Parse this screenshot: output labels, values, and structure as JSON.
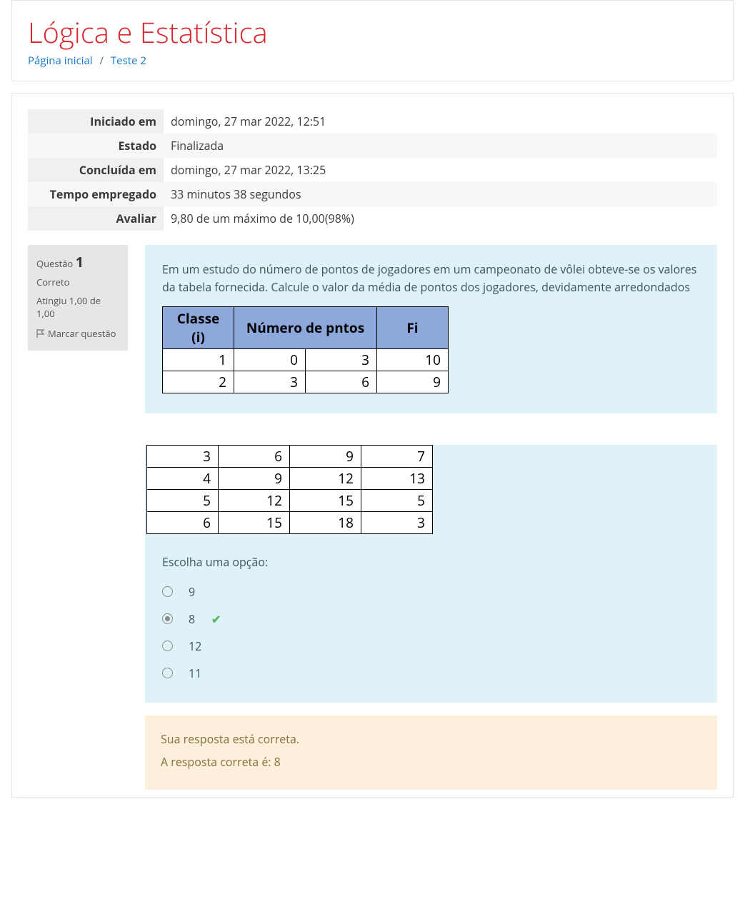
{
  "header": {
    "title": "Lógica e Estatística",
    "title_color": "#d9262c",
    "breadcrumb": {
      "home": "Página inicial",
      "current": "Teste 2"
    }
  },
  "summary": {
    "rows": [
      {
        "label": "Iniciado em",
        "value": "domingo, 27 mar 2022, 12:51"
      },
      {
        "label": "Estado",
        "value": "Finalizada"
      },
      {
        "label": "Concluída em",
        "value": "domingo, 27 mar 2022, 13:25"
      },
      {
        "label": "Tempo empregado",
        "value": "33 minutos 38 segundos"
      },
      {
        "label": "Avaliar",
        "value": "9,80 de um máximo de 10,00(98%)"
      }
    ]
  },
  "question": {
    "label": "Questão",
    "number": "1",
    "state": "Correto",
    "grade": "Atingiu 1,00 de 1,00",
    "flag_label": "Marcar questão",
    "text": "Em um estudo do número de pontos de jogadores em um campeonato de vôlei obteve-se os valores da tabela fornecida. Calcule o valor da média de pontos dos jogadores, devidamente arredondados",
    "table": {
      "header_bg": "#8ea8dc",
      "headers": {
        "classe": "Classe (i)",
        "num": "Número de pntos",
        "fi": "Fi"
      },
      "rows_top": [
        {
          "i": "1",
          "a": "0",
          "b": "3",
          "fi": "10"
        },
        {
          "i": "2",
          "a": "3",
          "b": "6",
          "fi": "9"
        }
      ],
      "rows_bottom": [
        {
          "i": "3",
          "a": "6",
          "b": "9",
          "fi": "7"
        },
        {
          "i": "4",
          "a": "9",
          "b": "12",
          "fi": "13"
        },
        {
          "i": "5",
          "a": "12",
          "b": "15",
          "fi": "5"
        },
        {
          "i": "6",
          "a": "15",
          "b": "18",
          "fi": "3"
        }
      ]
    },
    "prompt": "Escolha uma opção:",
    "options": [
      {
        "label": "9",
        "selected": false,
        "correct": false
      },
      {
        "label": "8",
        "selected": true,
        "correct": true
      },
      {
        "label": "12",
        "selected": false,
        "correct": false
      },
      {
        "label": "11",
        "selected": false,
        "correct": false
      }
    ],
    "feedback": {
      "bg": "#fcefdc",
      "line1": "Sua resposta está correta.",
      "line2": "A resposta correta é: 8"
    }
  },
  "colors": {
    "question_bg": "#def2f8",
    "info_bg": "#e6e6e6",
    "link": "#1177d1",
    "correct": "#5cb85c"
  }
}
